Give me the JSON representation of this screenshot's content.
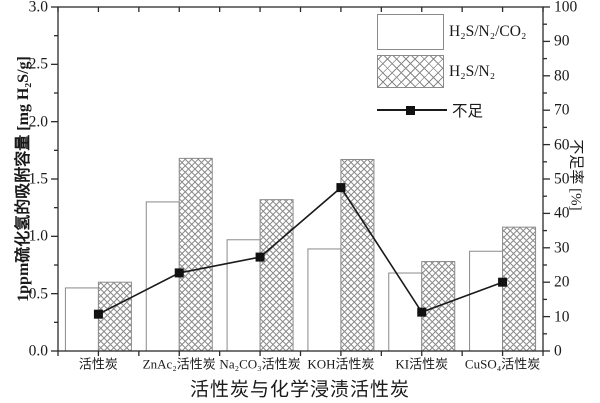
{
  "chart_data": {
    "type": "bar",
    "title": "",
    "xlabel": "活性炭与化学浸渍活性炭",
    "categories": [
      "活性炭",
      "ZnAc₂活性炭",
      "Na₂CO₃活性炭",
      "KOH活性炭",
      "KI活性炭",
      "CuSO₄活性炭"
    ],
    "series": [
      {
        "name": "H₂S/N₂/CO₂",
        "style": "white",
        "axis": "left",
        "values": [
          0.55,
          1.3,
          0.97,
          0.89,
          0.68,
          0.87
        ]
      },
      {
        "name": "H₂S/N₂",
        "style": "crosshatch",
        "axis": "left",
        "values": [
          0.6,
          1.68,
          1.32,
          1.67,
          0.78,
          1.08
        ]
      }
    ],
    "line_series": {
      "name": "不足",
      "axis": "right",
      "marker": "filled-square",
      "values": [
        10.7,
        22.7,
        27.3,
        47.5,
        11.3,
        20
      ]
    },
    "left_axis": {
      "label": "1ppm硫化氢的吸附容量 [mg H₂S/g]",
      "min": 0,
      "max": 3,
      "major_step": 0.5,
      "minor_step": 0.25,
      "tick_labels": [
        "0.0",
        "0.5",
        "1.0",
        "1.5",
        "2.0",
        "2.5",
        "3.0"
      ]
    },
    "right_axis": {
      "label": "不足率 [%]",
      "min": 0,
      "max": 100,
      "major_step": 10,
      "minor_step": 5,
      "tick_labels": [
        "0",
        "10",
        "20",
        "30",
        "40",
        "50",
        "60",
        "70",
        "80",
        "90",
        "100"
      ]
    },
    "grid": false,
    "legend_position": "top-right",
    "colors": {
      "background": "#ffffff",
      "axis_color": "#2b2b2b",
      "text_color": "#1a1a1a",
      "bar_border": "#8a8a8a",
      "hatch_line": "#8a8a8a",
      "line_color": "#1a1a1a",
      "marker_color": "#111111"
    }
  }
}
